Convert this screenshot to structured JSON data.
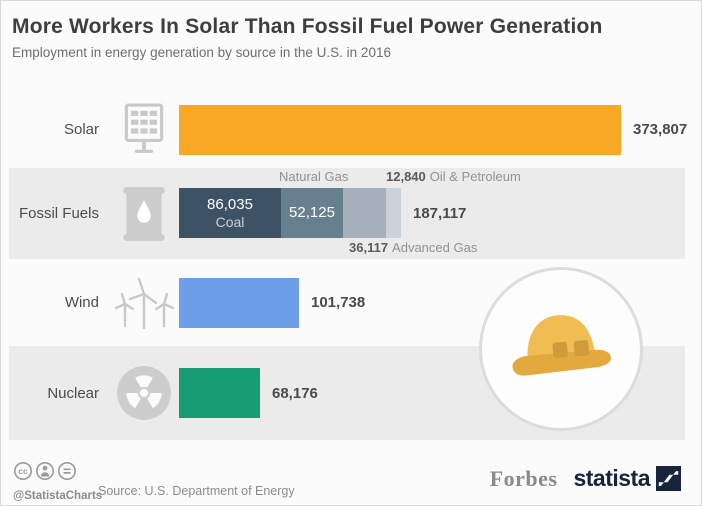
{
  "header": {
    "title": "More Workers In Solar Than Fossil Fuel Power Generation",
    "subtitle": "Employment in energy generation by source in the U.S. in 2016"
  },
  "chart_data": {
    "type": "bar",
    "orientation": "horizontal",
    "title": "More Workers In Solar Than Fossil Fuel Power Generation",
    "subtitle": "Employment in energy generation by source in the U.S. in 2016",
    "unit": "workers",
    "grid": false,
    "legend": false,
    "xlim": [
      0,
      373807
    ],
    "categories": [
      "Solar",
      "Fossil Fuels",
      "Wind",
      "Nuclear"
    ],
    "values": [
      373807,
      187117,
      101738,
      68176
    ],
    "value_labels": [
      "373,807",
      "187,117",
      "101,738",
      "68,176"
    ],
    "stacked_breakdown": {
      "category": "Fossil Fuels",
      "total": 187117,
      "total_label": "187,117",
      "segments": [
        {
          "name": "Coal",
          "value": 86035,
          "label": "86,035",
          "color": "#3e5266"
        },
        {
          "name": "Natural Gas",
          "value": 52125,
          "label": "52,125",
          "color": "#66808f"
        },
        {
          "name": "Advanced Gas",
          "value": 36117,
          "label": "36,117",
          "color": "#a6b0ba"
        },
        {
          "name": "Oil & Petroleum",
          "value": 12840,
          "label": "12,840",
          "color": "#ccd2d9"
        }
      ]
    }
  },
  "rows": [
    {
      "label": "Solar",
      "icon": "solar-panel-icon",
      "value": 373807,
      "value_label": "373,807",
      "color": "#f9a823"
    },
    {
      "label": "Fossil Fuels",
      "icon": "oil-barrel-icon",
      "value": 187117,
      "value_label": "187,117",
      "color": "#3e5266"
    },
    {
      "label": "Wind",
      "icon": "wind-turbines-icon",
      "value": 101738,
      "value_label": "101,738",
      "color": "#6d9ee8"
    },
    {
      "label": "Nuclear",
      "icon": "radiation-icon",
      "value": 68176,
      "value_label": "68,176",
      "color": "#169b72"
    }
  ],
  "footer": {
    "credit": "@StatistaCharts",
    "source": "Source: U.S. Department of Energy",
    "brands": {
      "forbes": "Forbes",
      "statista": "statista"
    },
    "statista_navy": "#16243c"
  }
}
